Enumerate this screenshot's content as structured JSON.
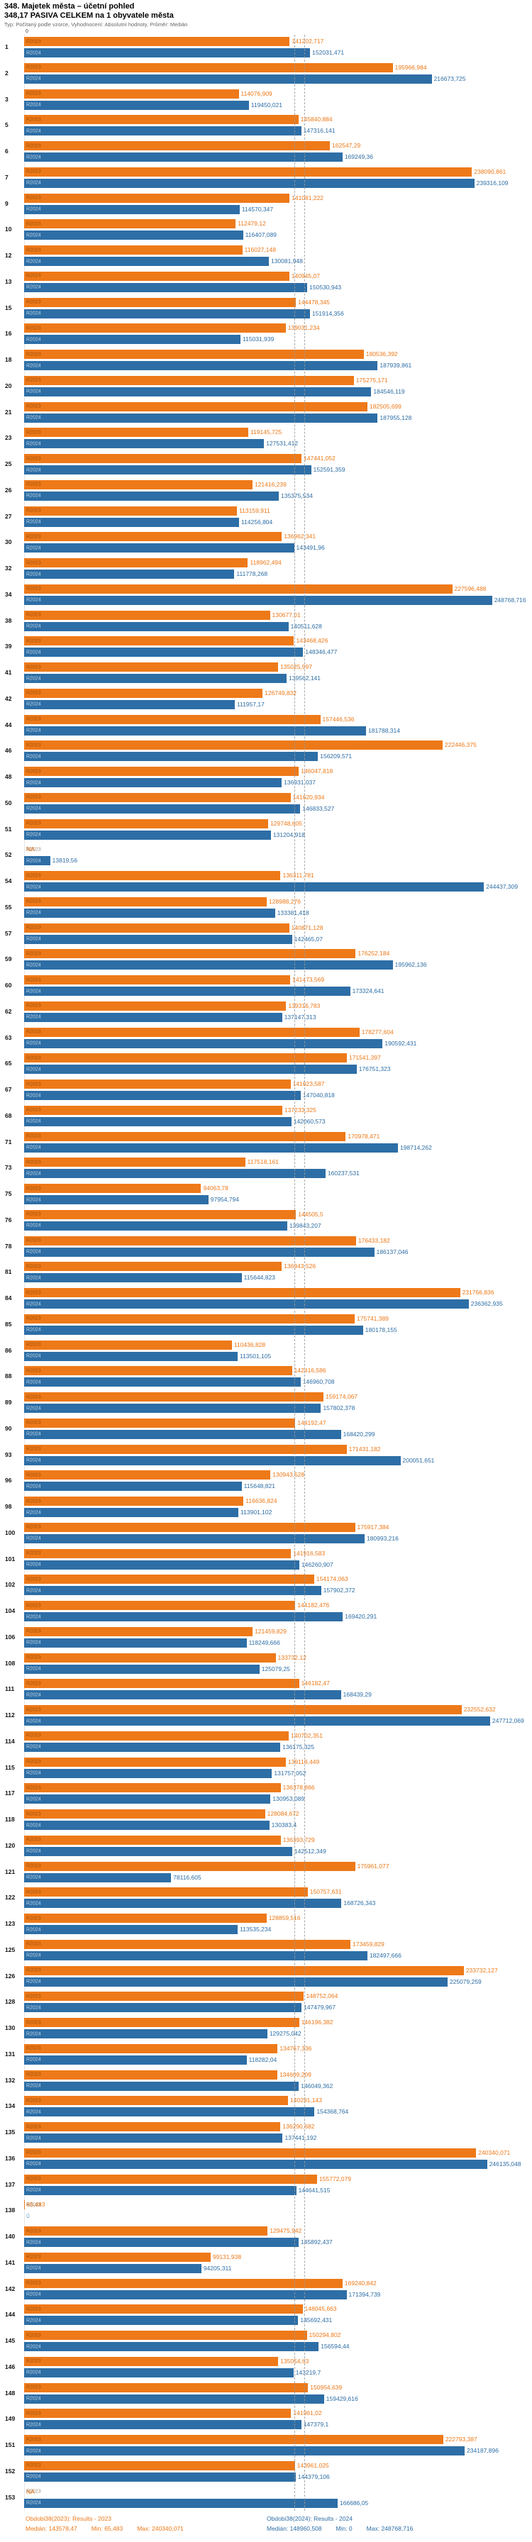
{
  "header": {
    "title": "348. Majetek města – účetní pohled",
    "subtitle": "348,17 PASIVA CELKEM na 1 obyvatele města",
    "meta": "Typ: Počítaný podle vzorce, Vyhodnocení: Absolutní hodnoty, Průměr: Medián",
    "axis_zero": "0"
  },
  "chart_data": {
    "type": "bar",
    "orientation": "horizontal",
    "title": "348,17 PASIVA CELKEM na 1 obyvatele města",
    "xlim": [
      0,
      270000
    ],
    "grid": false,
    "legend_position": "bottom",
    "series": [
      {
        "name": "R2023",
        "color": "#ee7918",
        "legend": "Obdobi38(2023): Results - 2023",
        "median": 143578.47,
        "median_label": "Medián: 143578,47",
        "min_label": "Min: 65,483",
        "max_label": "Max: 240340,071"
      },
      {
        "name": "R2024",
        "color": "#2d6ea6",
        "legend": "Obdobi38(2024): Results - 2024",
        "median": 148960.508,
        "median_label": "Medián: 148960,508",
        "min_label": "Min: 0",
        "max_label": "Max: 248768,716"
      }
    ],
    "rows": [
      {
        "id": "1",
        "r2023": "141202,717",
        "r2024": "152031,471"
      },
      {
        "id": "2",
        "r2023": "195966,984",
        "r2024": "216673,725"
      },
      {
        "id": "3",
        "r2023": "114076,909",
        "r2024": "119450,021"
      },
      {
        "id": "5",
        "r2023": "145840,884",
        "r2024": "147316,141"
      },
      {
        "id": "6",
        "r2023": "162547,29",
        "r2024": "169249,36"
      },
      {
        "id": "7",
        "r2023": "238090,861",
        "r2024": "239316,109"
      },
      {
        "id": "9",
        "r2023": "141081,222",
        "r2024": "114570,347"
      },
      {
        "id": "10",
        "r2023": "112479,12",
        "r2024": "116407,089"
      },
      {
        "id": "12",
        "r2023": "116027,148",
        "r2024": "130081,948"
      },
      {
        "id": "13",
        "r2023": "140945,07",
        "r2024": "150530,943"
      },
      {
        "id": "15",
        "r2023": "144478,345",
        "r2024": "151914,356"
      },
      {
        "id": "16",
        "r2023": "139031,234",
        "r2024": "115031,939"
      },
      {
        "id": "18",
        "r2023": "180536,392",
        "r2024": "187939,861"
      },
      {
        "id": "20",
        "r2023": "175275,171",
        "r2024": "184546,119"
      },
      {
        "id": "21",
        "r2023": "182505,699",
        "r2024": "187955,128"
      },
      {
        "id": "23",
        "r2023": "119145,725",
        "r2024": "127531,412"
      },
      {
        "id": "25",
        "r2023": "147441,052",
        "r2024": "152591,359"
      },
      {
        "id": "26",
        "r2023": "121416,239",
        "r2024": "135375,534"
      },
      {
        "id": "27",
        "r2023": "113159,911",
        "r2024": "114256,804"
      },
      {
        "id": "30",
        "r2023": "136962,341",
        "r2024": "143491,96"
      },
      {
        "id": "32",
        "r2023": "118962,494",
        "r2024": "111778,268"
      },
      {
        "id": "34",
        "r2023": "227596,488",
        "r2024": "248768,716"
      },
      {
        "id": "38",
        "r2023": "130677,01",
        "r2024": "140511,628"
      },
      {
        "id": "39",
        "r2023": "143468,426",
        "r2024": "148346,477"
      },
      {
        "id": "41",
        "r2023": "135025,997",
        "r2024": "139562,141"
      },
      {
        "id": "42",
        "r2023": "126749,832",
        "r2024": "111957,17"
      },
      {
        "id": "44",
        "r2023": "157446,536",
        "r2024": "181788,314"
      },
      {
        "id": "46",
        "r2023": "222446,375",
        "r2024": "156209,571"
      },
      {
        "id": "48",
        "r2023": "146047,818",
        "r2024": "136931,037"
      },
      {
        "id": "50",
        "r2023": "141620,934",
        "r2024": "146833,527"
      },
      {
        "id": "51",
        "r2023": "129748,605",
        "r2024": "131204,918"
      },
      {
        "id": "52",
        "r2023": "NA",
        "r2024": "13819,56"
      },
      {
        "id": "54",
        "r2023": "136311,781",
        "r2024": "244437,309"
      },
      {
        "id": "55",
        "r2023": "128988,276",
        "r2024": "133381,418"
      },
      {
        "id": "57",
        "r2023": "140871,128",
        "r2024": "142465,07"
      },
      {
        "id": "59",
        "r2023": "176252,184",
        "r2024": "195962,136"
      },
      {
        "id": "60",
        "r2023": "141473,569",
        "r2024": "173324,641"
      },
      {
        "id": "62",
        "r2023": "139316,783",
        "r2024": "137147,313"
      },
      {
        "id": "63",
        "r2023": "178277,604",
        "r2024": "190592,431"
      },
      {
        "id": "65",
        "r2023": "171541,397",
        "r2024": "176751,323"
      },
      {
        "id": "67",
        "r2023": "141623,587",
        "r2024": "147040,818"
      },
      {
        "id": "68",
        "r2023": "137233,325",
        "r2024": "142060,573"
      },
      {
        "id": "71",
        "r2023": "170978,471",
        "r2024": "198714,262"
      },
      {
        "id": "73",
        "r2023": "117518,161",
        "r2024": "160237,531"
      },
      {
        "id": "75",
        "r2023": "94063,78",
        "r2024": "97954,794"
      },
      {
        "id": "76",
        "r2023": "144505,5",
        "r2024": "139843,207"
      },
      {
        "id": "78",
        "r2023": "176433,182",
        "r2024": "186137,046"
      },
      {
        "id": "81",
        "r2023": "136943,526",
        "r2024": "115644,823"
      },
      {
        "id": "84",
        "r2023": "231766,836",
        "r2024": "236362,935"
      },
      {
        "id": "85",
        "r2023": "175741,389",
        "r2024": "180178,155"
      },
      {
        "id": "86",
        "r2023": "110436,828",
        "r2024": "113501,105"
      },
      {
        "id": "88",
        "r2023": "142416,586",
        "r2024": "146960,708"
      },
      {
        "id": "89",
        "r2023": "159174,067",
        "r2024": "157802,378"
      },
      {
        "id": "90",
        "r2023": "144192,47",
        "r2024": "168420,299"
      },
      {
        "id": "93",
        "r2023": "171431,182",
        "r2024": "200051,651"
      },
      {
        "id": "96",
        "r2023": "130943,528",
        "r2024": "115648,821"
      },
      {
        "id": "98",
        "r2023": "116636,824",
        "r2024": "113901,102"
      },
      {
        "id": "100",
        "r2023": "175917,384",
        "r2024": "180993,216"
      },
      {
        "id": "101",
        "r2023": "141916,583",
        "r2024": "146260,907"
      },
      {
        "id": "102",
        "r2023": "154174,063",
        "r2024": "157902,372"
      },
      {
        "id": "104",
        "r2023": "144182,476",
        "r2024": "169420,291"
      },
      {
        "id": "106",
        "r2023": "121459,829",
        "r2024": "118249,666"
      },
      {
        "id": "108",
        "r2023": "133732,12",
        "r2024": "125079,25"
      },
      {
        "id": "111",
        "r2023": "146182,47",
        "r2024": "168439,29"
      },
      {
        "id": "112",
        "r2023": "232552,632",
        "r2024": "247712,069"
      },
      {
        "id": "114",
        "r2023": "140702,351",
        "r2024": "136175,325"
      },
      {
        "id": "115",
        "r2023": "139118,449",
        "r2024": "131757,052"
      },
      {
        "id": "117",
        "r2023": "136378,866",
        "r2024": "130953,089"
      },
      {
        "id": "118",
        "r2023": "128084,672",
        "r2024": "130383,4"
      },
      {
        "id": "120",
        "r2023": "136393,729",
        "r2024": "142512,349"
      },
      {
        "id": "121",
        "r2023": "175961,077",
        "r2024": "78116,605"
      },
      {
        "id": "122",
        "r2023": "150757,631",
        "r2024": "168726,343"
      },
      {
        "id": "123",
        "r2023": "128859,516",
        "r2024": "113535,234"
      },
      {
        "id": "125",
        "r2023": "173459,829",
        "r2024": "182497,666"
      },
      {
        "id": "126",
        "r2023": "233732,127",
        "r2024": "225079,259"
      },
      {
        "id": "128",
        "r2023": "148752,064",
        "r2024": "147479,967"
      },
      {
        "id": "130",
        "r2023": "146196,382",
        "r2024": "129275,042"
      },
      {
        "id": "131",
        "r2023": "134767,336",
        "r2024": "118282,04"
      },
      {
        "id": "132",
        "r2023": "134609,209",
        "r2024": "146049,362"
      },
      {
        "id": "134",
        "r2023": "140291,143",
        "r2024": "154368,764"
      },
      {
        "id": "135",
        "r2023": "136290,682",
        "r2024": "137441,192"
      },
      {
        "id": "136",
        "r2023": "240340,071",
        "r2024": "246135,048"
      },
      {
        "id": "137",
        "r2023": "155772,079",
        "r2024": "144641,515"
      },
      {
        "id": "138",
        "r2023": "65,483",
        "r2024": "0"
      },
      {
        "id": "140",
        "r2023": "129475,942",
        "r2024": "145892,437"
      },
      {
        "id": "141",
        "r2023": "99131,938",
        "r2024": "94205,311"
      },
      {
        "id": "142",
        "r2023": "169240,842",
        "r2024": "171394,739"
      },
      {
        "id": "144",
        "r2023": "148045,663",
        "r2024": "145692,431"
      },
      {
        "id": "145",
        "r2023": "150294,802",
        "r2024": "156594,44"
      },
      {
        "id": "146",
        "r2023": "135054,63",
        "r2024": "143219,7"
      },
      {
        "id": "148",
        "r2023": "150954,639",
        "r2024": "159429,616"
      },
      {
        "id": "149",
        "r2023": "141961,02",
        "r2024": "147379,1"
      },
      {
        "id": "151",
        "r2023": "222793,387",
        "r2024": "234187,896"
      },
      {
        "id": "152",
        "r2023": "143961,025",
        "r2024": "144379,106"
      },
      {
        "id": "153",
        "r2023": "NA",
        "r2024": "166686,05"
      }
    ]
  }
}
